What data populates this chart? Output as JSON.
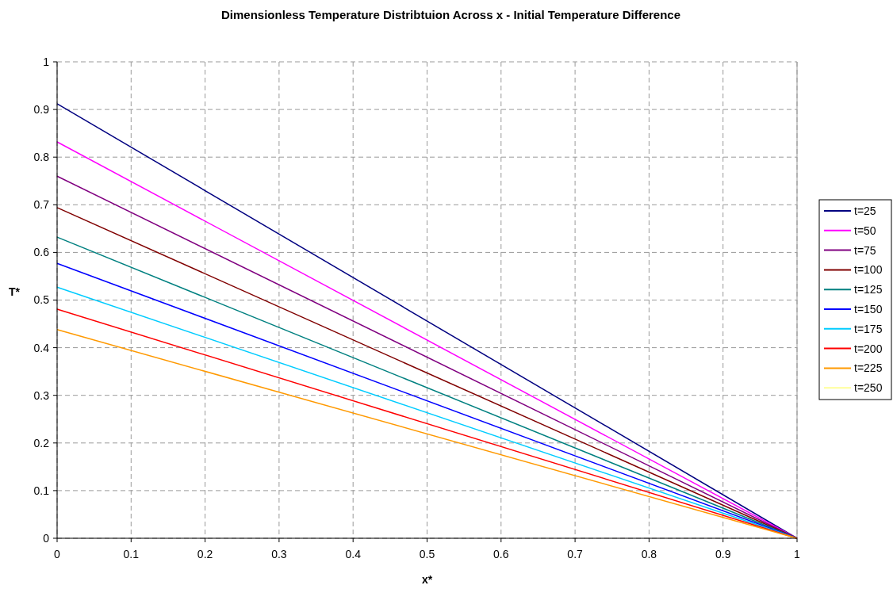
{
  "chart_data": {
    "type": "line",
    "title": "Dimensionless Temperature Distribtuion Across x - Initial Temperature Difference",
    "xlabel": "x*",
    "ylabel": "T*",
    "x": [
      0,
      1
    ],
    "series": [
      {
        "name": "t=25",
        "color": "#000080",
        "values": [
          0.912,
          0
        ]
      },
      {
        "name": "t=50",
        "color": "#ff00ff",
        "values": [
          0.832,
          0
        ]
      },
      {
        "name": "t=75",
        "color": "#800080",
        "values": [
          0.76,
          0
        ]
      },
      {
        "name": "t=100",
        "color": "#800000",
        "values": [
          0.694,
          0
        ]
      },
      {
        "name": "t=125",
        "color": "#008080",
        "values": [
          0.632,
          0
        ]
      },
      {
        "name": "t=150",
        "color": "#0000ff",
        "values": [
          0.577,
          0
        ]
      },
      {
        "name": "t=175",
        "color": "#00ccff",
        "values": [
          0.527,
          0
        ]
      },
      {
        "name": "t=200",
        "color": "#ff0000",
        "values": [
          0.481,
          0
        ]
      },
      {
        "name": "t=225",
        "color": "#ff9900",
        "values": [
          0.438,
          0
        ]
      },
      {
        "name": "t=250",
        "color": "#ffff99",
        "values": [
          null,
          null
        ]
      }
    ],
    "xlim": [
      0,
      1
    ],
    "ylim": [
      0,
      1
    ],
    "xticks": [
      0,
      0.1,
      0.2,
      0.3,
      0.4,
      0.5,
      0.6,
      0.7,
      0.8,
      0.9,
      1
    ],
    "yticks": [
      0,
      0.1,
      0.2,
      0.3,
      0.4,
      0.5,
      0.6,
      0.7,
      0.8,
      0.9,
      1
    ],
    "grid": true,
    "legend": "right",
    "marker": "none",
    "line_style": "solid"
  }
}
